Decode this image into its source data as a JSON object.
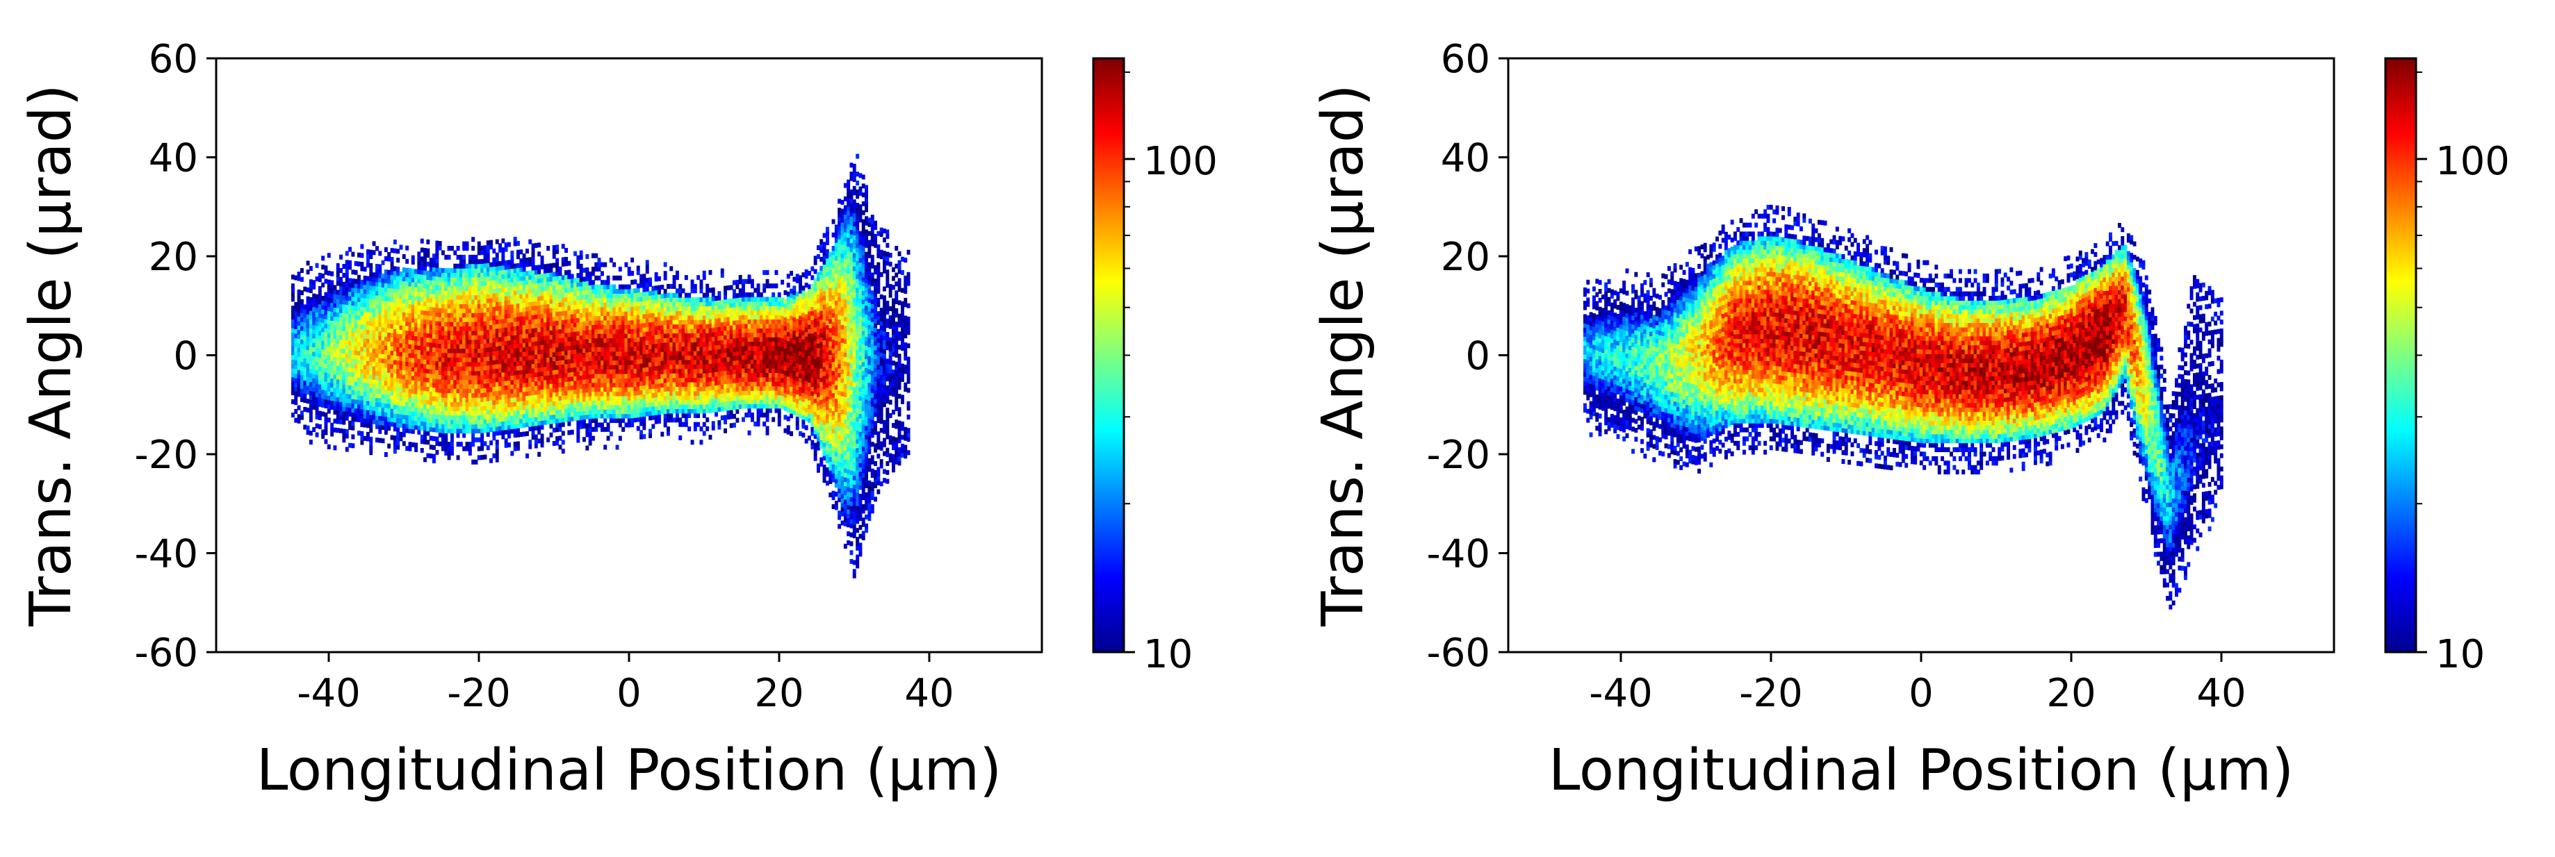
{
  "chart_data": [
    {
      "type": "heatmap",
      "xlabel": "Longitudinal Position (μm)",
      "ylabel": "Trans. Angle (μrad)",
      "xlim": [
        -55,
        55
      ],
      "ylim": [
        -60,
        60
      ],
      "xticks": [
        -40,
        -20,
        0,
        20,
        40
      ],
      "yticks": [
        -60,
        -40,
        -20,
        0,
        20,
        40,
        60
      ],
      "colorbar": {
        "scale": "log",
        "range": [
          10,
          160
        ],
        "tick_labels": [
          "10",
          "100"
        ],
        "colormap": "jet"
      },
      "profile": {
        "x": [
          -45,
          -40,
          -35,
          -30,
          -25,
          -20,
          -15,
          -10,
          -5,
          0,
          5,
          10,
          15,
          20,
          24,
          27,
          30,
          33,
          37
        ],
        "center": [
          0,
          0,
          0,
          0,
          -0.5,
          -0.5,
          -0.5,
          -0.5,
          -0.5,
          -0.5,
          -0.5,
          -0.5,
          -1,
          -1,
          -1,
          0,
          0,
          0,
          0
        ],
        "upper": [
          12,
          14,
          16,
          17,
          17,
          18,
          17,
          16,
          14,
          13,
          12,
          11,
          11,
          11,
          13,
          22,
          35,
          20,
          15
        ],
        "lower": [
          -11,
          -13,
          -14,
          -15,
          -16,
          -16,
          -15,
          -14,
          -13,
          -13,
          -12,
          -12,
          -11,
          -11,
          -14,
          -25,
          -40,
          -22,
          -15
        ],
        "peak": [
          25,
          40,
          65,
          90,
          110,
          120,
          125,
          125,
          125,
          125,
          125,
          130,
          135,
          145,
          160,
          100,
          40,
          15,
          11
        ]
      }
    },
    {
      "type": "heatmap",
      "xlabel": "Longitudinal Position (μm)",
      "ylabel": "Trans. Angle (μrad)",
      "xlim": [
        -55,
        55
      ],
      "ylim": [
        -60,
        60
      ],
      "xticks": [
        -40,
        -20,
        0,
        20,
        40
      ],
      "yticks": [
        -60,
        -40,
        -20,
        0,
        20,
        40,
        60
      ],
      "colorbar": {
        "scale": "log",
        "range": [
          10,
          160
        ],
        "tick_labels": [
          "10",
          "100"
        ],
        "colormap": "jet"
      },
      "profile": {
        "x": [
          -45,
          -40,
          -35,
          -30,
          -25,
          -20,
          -15,
          -10,
          -5,
          0,
          5,
          10,
          15,
          20,
          24,
          27,
          30,
          33,
          36,
          40
        ],
        "center": [
          0,
          0,
          -2,
          0,
          4,
          5,
          4,
          2,
          0,
          -2,
          -4,
          -4,
          -3,
          0,
          4,
          10,
          -10,
          -30,
          -20,
          -15
        ],
        "upper": [
          10,
          11,
          10,
          16,
          22,
          24,
          22,
          19,
          16,
          13,
          11,
          11,
          11,
          14,
          18,
          22,
          10,
          -15,
          10,
          5
        ],
        "lower": [
          -10,
          -13,
          -16,
          -18,
          -14,
          -14,
          -15,
          -16,
          -17,
          -18,
          -18,
          -18,
          -17,
          -15,
          -12,
          -5,
          -28,
          -48,
          -35,
          -25
        ],
        "peak": [
          25,
          30,
          40,
          60,
          110,
          120,
          125,
          120,
          120,
          125,
          130,
          135,
          140,
          150,
          160,
          110,
          50,
          25,
          14,
          11
        ]
      }
    }
  ]
}
